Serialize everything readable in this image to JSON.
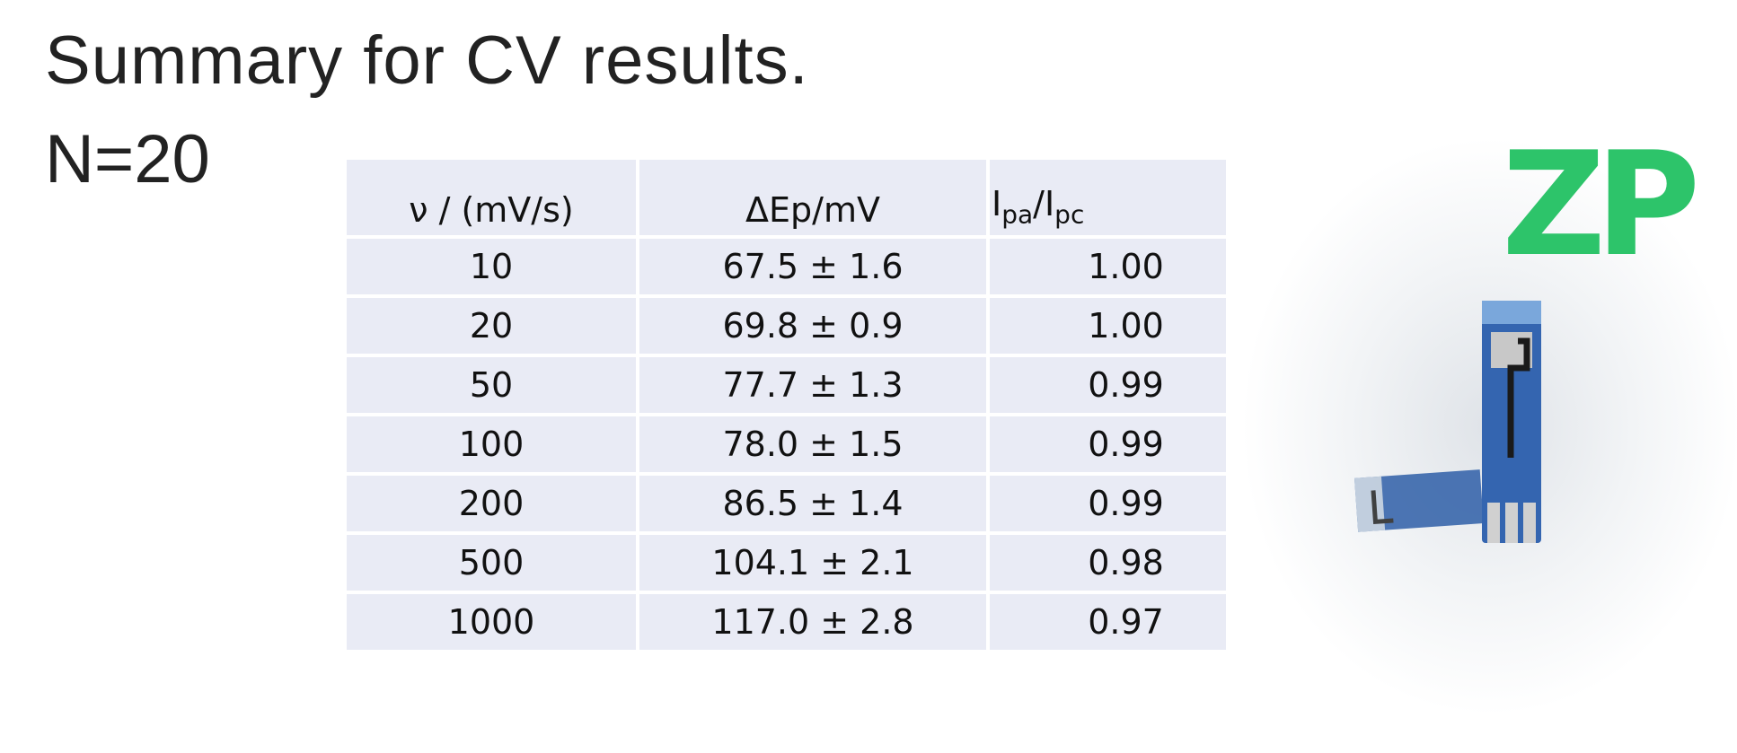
{
  "header": {
    "title": "Summary for CV results.",
    "subtitle": "N=20"
  },
  "table": {
    "columns": [
      "ν / (mV/s)",
      "ΔEp/mV",
      [
        "I",
        "pa",
        "/I",
        "pc"
      ]
    ],
    "rows": [
      [
        "10",
        "67.5 ± 1.6",
        "1.00"
      ],
      [
        "20",
        "69.8 ± 0.9",
        "1.00"
      ],
      [
        "50",
        "77.7 ± 1.3",
        "0.99"
      ],
      [
        "100",
        "78.0 ± 1.5",
        "0.99"
      ],
      [
        "200",
        "86.5 ± 1.4",
        "0.99"
      ],
      [
        "500",
        "104.1 ± 2.1",
        "0.98"
      ],
      [
        "1000",
        "117.0 ± 2.8",
        "0.97"
      ]
    ]
  },
  "logo": {
    "text": "ZP"
  }
}
